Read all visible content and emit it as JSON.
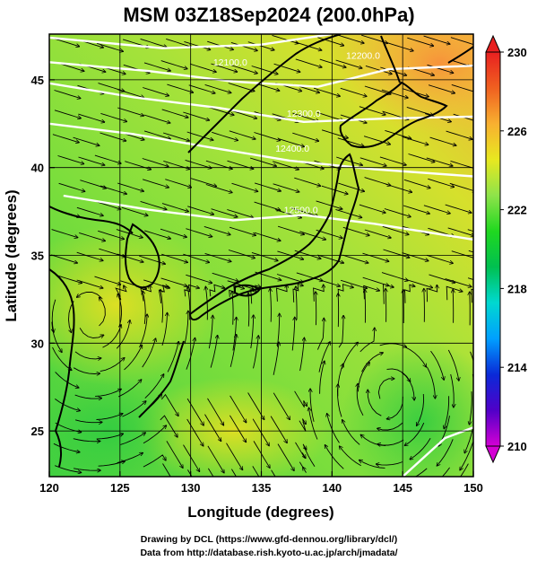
{
  "title": "MSM 03Z18Sep2024 (200.0hPa)",
  "xlabel": "Longitude (degrees)",
  "ylabel": "Latitude  (degrees)",
  "credits": [
    "Drawing by DCL (https://www.gfd-dennou.org/library/dcl/)",
    "Data from http://database.rish.kyoto-u.ac.jp/arch/jmadata/"
  ],
  "map": {
    "lon_range": [
      120,
      150
    ],
    "lat_range": [
      22.4,
      47.6
    ],
    "lon_ticks": [
      120,
      125,
      130,
      135,
      140,
      145,
      150
    ],
    "lat_ticks": [
      25,
      30,
      35,
      40,
      45
    ],
    "contour_labels": [
      {
        "text": "12100.0",
        "lon": 132.8,
        "lat": 45.8
      },
      {
        "text": "12200.0",
        "lon": 142.2,
        "lat": 46.2
      },
      {
        "text": "12300.0",
        "lon": 138.0,
        "lat": 42.9
      },
      {
        "text": "12400.0",
        "lon": 137.2,
        "lat": 40.9
      },
      {
        "text": "12500.0",
        "lon": 137.8,
        "lat": 37.4
      }
    ],
    "colors": {
      "background_main": "#8ee34a",
      "warm_ne": "#f7a43a",
      "contour": "#ffffff",
      "coast": "#000000"
    }
  },
  "colorbar": {
    "min": 210,
    "max": 230,
    "tick_labels": [
      "230",
      "226",
      "222",
      "218",
      "214",
      "210"
    ],
    "colors": [
      "#d400d4",
      "#5000c8",
      "#0a2ad8",
      "#00a0ff",
      "#00d8d0",
      "#00c050",
      "#20d820",
      "#8ee34a",
      "#e8e820",
      "#f8b030",
      "#f06020",
      "#e82020"
    ]
  }
}
